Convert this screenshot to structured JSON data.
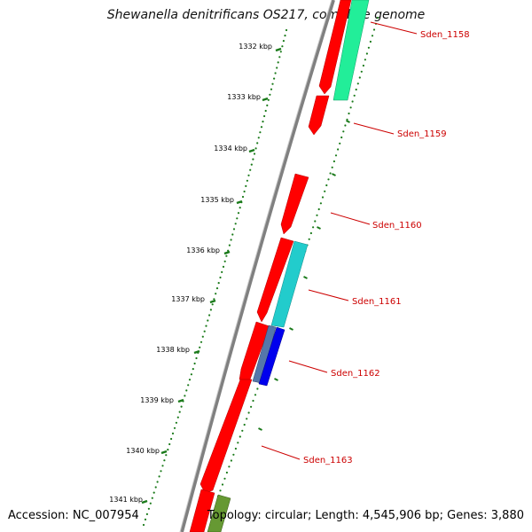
{
  "title": "Shewanella denitrificans OS217, complete genome",
  "footer": {
    "accession": "Accession: NC_007954",
    "summary": "Topology: circular; Length: 4,545,906 bp; Genes: 3,880"
  },
  "scale": {
    "ticks": [
      "1332 kbp",
      "1333 kbp",
      "1334 kbp",
      "1335 kbp",
      "1336 kbp",
      "1337 kbp",
      "1338 kbp",
      "1339 kbp",
      "1340 kbp",
      "1341 kbp"
    ]
  },
  "genes": [
    "Sden_1158",
    "Sden_1159",
    "Sden_1160",
    "Sden_1161",
    "Sden_1162",
    "Sden_1163"
  ],
  "colors": {
    "backbone": "#808080",
    "cds_forward": "#ff0000",
    "tick": "#1a7a1a",
    "label": "#cc0000",
    "feature_green": "#22ee99",
    "feature_cyan": "#22cccc",
    "feature_blue": "#0000ee",
    "feature_steel": "#5577aa",
    "feature_olive": "#669933"
  }
}
